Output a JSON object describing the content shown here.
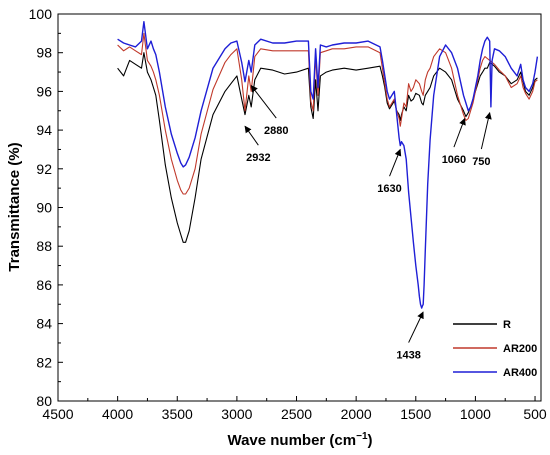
{
  "chart_data": {
    "type": "line",
    "title": "",
    "xlabel": "Wave number (cm",
    "xlabel_sup": "−1",
    "xlabel_tail": ")",
    "ylabel": "Transmittance (%)",
    "xlim": [
      4500,
      450
    ],
    "xreversed": true,
    "ylim": [
      80,
      100
    ],
    "xticks": [
      4500,
      4000,
      3500,
      3000,
      2500,
      2000,
      1500,
      1000,
      500
    ],
    "yticks": [
      80,
      82,
      84,
      86,
      88,
      90,
      92,
      94,
      96,
      98,
      100
    ],
    "grid": false,
    "legend_position": "bottom-right",
    "series": [
      {
        "name": "R",
        "color": "#000000",
        "x": [
          4000,
          3950,
          3900,
          3850,
          3800,
          3780,
          3750,
          3720,
          3700,
          3680,
          3650,
          3600,
          3550,
          3500,
          3470,
          3450,
          3430,
          3400,
          3350,
          3300,
          3200,
          3100,
          3050,
          3000,
          2960,
          2932,
          2900,
          2880,
          2850,
          2800,
          2700,
          2600,
          2500,
          2400,
          2380,
          2360,
          2340,
          2320,
          2300,
          2250,
          2200,
          2100,
          2000,
          1900,
          1800,
          1780,
          1760,
          1740,
          1720,
          1700,
          1680,
          1660,
          1640,
          1630,
          1620,
          1600,
          1580,
          1560,
          1540,
          1520,
          1500,
          1470,
          1450,
          1438,
          1420,
          1400,
          1380,
          1350,
          1300,
          1250,
          1200,
          1150,
          1100,
          1080,
          1060,
          1040,
          1020,
          1000,
          980,
          960,
          940,
          920,
          900,
          880,
          860,
          840,
          800,
          750,
          700,
          650,
          620,
          600,
          580,
          550,
          520,
          500,
          480
        ],
        "y": [
          97.2,
          96.8,
          97.6,
          97.4,
          97.2,
          98.0,
          97.0,
          96.6,
          96.2,
          95.8,
          94.5,
          92.2,
          90.5,
          89.2,
          88.6,
          88.2,
          88.2,
          88.8,
          90.5,
          92.5,
          94.8,
          96.0,
          96.4,
          96.8,
          95.6,
          94.8,
          95.8,
          95.2,
          96.6,
          97.2,
          97.1,
          96.9,
          97.0,
          97.2,
          95.2,
          94.6,
          96.6,
          95.0,
          96.8,
          97.0,
          97.1,
          97.2,
          97.1,
          97.2,
          97.3,
          96.8,
          96.2,
          95.4,
          95.1,
          95.3,
          95.5,
          95.0,
          94.8,
          94.5,
          94.8,
          95.2,
          95.0,
          95.8,
          95.5,
          95.6,
          95.9,
          95.8,
          95.4,
          95.3,
          95.8,
          96.0,
          96.2,
          96.8,
          97.2,
          97.0,
          96.6,
          95.6,
          95.0,
          94.7,
          94.9,
          95.2,
          95.6,
          96.0,
          96.4,
          96.8,
          97.0,
          97.2,
          97.2,
          97.5,
          97.4,
          97.3,
          97.0,
          96.8,
          96.4,
          96.6,
          97.0,
          96.5,
          96.0,
          95.8,
          96.2,
          96.6,
          96.7
        ]
      },
      {
        "name": "AR200",
        "color": "#c0392b",
        "x": [
          4000,
          3950,
          3900,
          3850,
          3800,
          3780,
          3750,
          3720,
          3700,
          3680,
          3650,
          3600,
          3550,
          3500,
          3470,
          3450,
          3430,
          3400,
          3350,
          3300,
          3200,
          3100,
          3050,
          3000,
          2960,
          2932,
          2900,
          2880,
          2850,
          2800,
          2700,
          2600,
          2500,
          2400,
          2380,
          2360,
          2340,
          2320,
          2300,
          2250,
          2200,
          2100,
          2000,
          1900,
          1800,
          1780,
          1760,
          1740,
          1720,
          1700,
          1680,
          1660,
          1640,
          1630,
          1620,
          1600,
          1580,
          1560,
          1540,
          1520,
          1500,
          1470,
          1450,
          1438,
          1420,
          1400,
          1380,
          1350,
          1300,
          1250,
          1200,
          1150,
          1100,
          1080,
          1060,
          1040,
          1020,
          1000,
          980,
          960,
          940,
          920,
          900,
          880,
          860,
          840,
          800,
          750,
          700,
          650,
          620,
          600,
          580,
          550,
          520,
          500,
          480
        ],
        "y": [
          98.4,
          98.1,
          98.3,
          98.1,
          97.9,
          99.0,
          97.6,
          97.3,
          97.0,
          96.6,
          95.8,
          94.0,
          92.5,
          91.4,
          90.9,
          90.7,
          90.7,
          91.0,
          92.0,
          93.8,
          96.1,
          97.5,
          97.9,
          98.2,
          96.6,
          95.0,
          96.8,
          96.0,
          97.8,
          98.2,
          98.1,
          98.1,
          98.1,
          98.1,
          95.5,
          95.0,
          97.8,
          95.8,
          98.0,
          98.1,
          98.2,
          98.2,
          98.3,
          98.3,
          98.0,
          97.2,
          96.4,
          95.6,
          95.2,
          95.4,
          95.6,
          95.0,
          94.6,
          94.2,
          94.6,
          95.4,
          95.2,
          96.4,
          96.0,
          96.2,
          96.6,
          96.4,
          96.0,
          95.8,
          96.6,
          97.0,
          97.2,
          97.8,
          98.2,
          98.0,
          97.2,
          95.8,
          94.8,
          94.5,
          94.6,
          95.0,
          95.4,
          96.0,
          96.6,
          97.2,
          97.6,
          97.8,
          97.7,
          97.6,
          97.5,
          97.4,
          97.1,
          96.8,
          96.2,
          96.4,
          96.8,
          96.2,
          95.9,
          95.6,
          96.0,
          96.5,
          96.6
        ]
      },
      {
        "name": "AR400",
        "color": "#1f1fd6",
        "x": [
          4000,
          3950,
          3900,
          3850,
          3800,
          3780,
          3750,
          3720,
          3700,
          3680,
          3650,
          3600,
          3550,
          3500,
          3470,
          3450,
          3430,
          3400,
          3350,
          3300,
          3200,
          3100,
          3050,
          3000,
          2960,
          2932,
          2900,
          2880,
          2850,
          2800,
          2700,
          2600,
          2500,
          2400,
          2380,
          2360,
          2340,
          2320,
          2300,
          2250,
          2200,
          2100,
          2000,
          1900,
          1800,
          1780,
          1760,
          1740,
          1720,
          1700,
          1680,
          1660,
          1640,
          1630,
          1620,
          1600,
          1580,
          1560,
          1540,
          1520,
          1500,
          1480,
          1470,
          1460,
          1450,
          1445,
          1438,
          1430,
          1420,
          1410,
          1400,
          1380,
          1350,
          1300,
          1250,
          1200,
          1150,
          1100,
          1080,
          1060,
          1040,
          1020,
          1000,
          980,
          960,
          940,
          920,
          900,
          880,
          870,
          860,
          840,
          800,
          750,
          700,
          650,
          620,
          600,
          580,
          550,
          520,
          500,
          480
        ],
        "y": [
          98.7,
          98.5,
          98.4,
          98.3,
          98.6,
          99.6,
          98.2,
          98.6,
          98.2,
          97.9,
          97.0,
          95.2,
          93.8,
          92.8,
          92.3,
          92.1,
          92.2,
          92.6,
          93.6,
          95.0,
          97.2,
          98.2,
          98.5,
          98.6,
          97.5,
          96.5,
          97.6,
          97.0,
          98.4,
          98.7,
          98.5,
          98.5,
          98.6,
          98.6,
          96.0,
          95.6,
          98.2,
          96.2,
          98.4,
          98.3,
          98.4,
          98.5,
          98.5,
          98.6,
          98.3,
          97.6,
          96.8,
          96.0,
          95.6,
          95.8,
          96.0,
          94.8,
          93.6,
          93.2,
          93.4,
          93.2,
          92.5,
          90.8,
          89.5,
          88.2,
          87.0,
          86.0,
          85.4,
          85.0,
          84.8,
          84.9,
          85.0,
          86.0,
          87.8,
          89.5,
          91.2,
          93.5,
          95.8,
          97.8,
          98.4,
          98.0,
          97.2,
          95.8,
          95.4,
          95.0,
          95.2,
          95.6,
          96.2,
          96.8,
          97.6,
          98.2,
          98.6,
          98.8,
          98.6,
          95.2,
          97.6,
          98.2,
          98.1,
          97.8,
          97.2,
          96.8,
          97.4,
          96.6,
          96.2,
          96.0,
          96.4,
          97.0,
          97.8
        ]
      }
    ],
    "annotations": [
      {
        "label": "2932",
        "target_x": 2932,
        "target_y": 94.2,
        "text_x": 2820,
        "text_y": 92.6
      },
      {
        "label": "2880",
        "target_x": 2880,
        "target_y": 96.3,
        "text_x": 2670,
        "text_y": 94.0
      },
      {
        "label": "1630",
        "target_x": 1630,
        "target_y": 93.0,
        "text_x": 1720,
        "text_y": 91.0
      },
      {
        "label": "1060",
        "target_x": 1090,
        "target_y": 94.6,
        "text_x": 1180,
        "text_y": 92.5
      },
      {
        "label": "750",
        "target_x": 880,
        "target_y": 94.9,
        "text_x": 950,
        "text_y": 92.4
      },
      {
        "label": "1438",
        "target_x": 1438,
        "target_y": 84.6,
        "text_x": 1560,
        "text_y": 82.4
      }
    ]
  }
}
